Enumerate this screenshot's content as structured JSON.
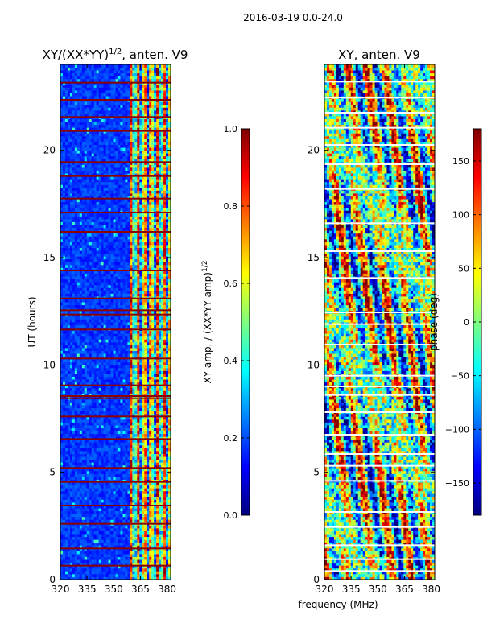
{
  "figure": {
    "suptitle": "2016-03-19 0.0-24.0",
    "shared_xlabel": "frequency (MHz)"
  },
  "chart_data": [
    {
      "type": "heatmap",
      "title_main": "XY/(XX*YY)",
      "title_exp": "1/2",
      "title_suffix": ", anten. V9",
      "xlabel": "",
      "ylabel": "UT (hours)",
      "xlim": [
        320,
        382
      ],
      "ylim": [
        0,
        24
      ],
      "xticks": [
        "320",
        "335",
        "350",
        "365",
        "380"
      ],
      "xtick_values": [
        320,
        335,
        350,
        365,
        380
      ],
      "yticks": [
        "0",
        "5",
        "10",
        "15",
        "20"
      ],
      "ytick_values": [
        0,
        5,
        10,
        15,
        20
      ],
      "band_edge_mhz": 359,
      "flagged_hours": [
        0.65,
        1.45,
        2.6,
        3.45,
        4.55,
        5.2,
        6.55,
        7.6,
        8.45,
        8.55,
        9.05,
        10.3,
        11.65,
        12.35,
        12.55,
        13.1,
        14.4,
        16.2,
        17.1,
        17.75,
        18.8,
        19.45,
        20.9,
        21.55,
        22.35,
        23.15
      ],
      "colormap": "jet",
      "colorbar": {
        "label_main": "XY amp. / (XX*YY amp)",
        "label_exp": "1/2",
        "range": [
          0.0,
          1.0
        ],
        "ticks": [
          "0.0",
          "0.2",
          "0.4",
          "0.6",
          "0.8",
          "1.0"
        ],
        "tick_values": [
          0.0,
          0.2,
          0.4,
          0.6,
          0.8,
          1.0
        ]
      }
    },
    {
      "type": "heatmap",
      "title_main": "XY, anten. V9",
      "title_exp": "",
      "title_suffix": "",
      "xlabel": "frequency (MHz)",
      "ylabel": "",
      "xlim": [
        320,
        382
      ],
      "ylim": [
        0,
        24
      ],
      "xticks": [
        "320",
        "335",
        "350",
        "365",
        "380"
      ],
      "xtick_values": [
        320,
        335,
        350,
        365,
        380
      ],
      "yticks": [
        "0",
        "5",
        "10",
        "15",
        "20"
      ],
      "ytick_values": [
        0,
        5,
        10,
        15,
        20
      ],
      "flagged_hours": [
        0.4,
        0.95,
        1.6,
        2.45,
        3.15,
        4.6,
        5.3,
        5.85,
        6.75,
        7.8,
        8.6,
        9.0,
        9.5,
        10.95,
        11.9,
        12.45,
        14.05,
        15.3,
        16.6,
        18.2,
        19.35,
        20.25,
        21.05,
        21.75,
        22.45,
        23.2
      ],
      "colormap": "jet",
      "colorbar": {
        "label_main": "phase (deg)",
        "label_exp": "",
        "range": [
          -180,
          180
        ],
        "ticks": [
          "−150",
          "−100",
          "−50",
          "0",
          "50",
          "100",
          "150"
        ],
        "tick_values": [
          -150,
          -100,
          -50,
          0,
          50,
          100,
          150
        ]
      }
    }
  ]
}
